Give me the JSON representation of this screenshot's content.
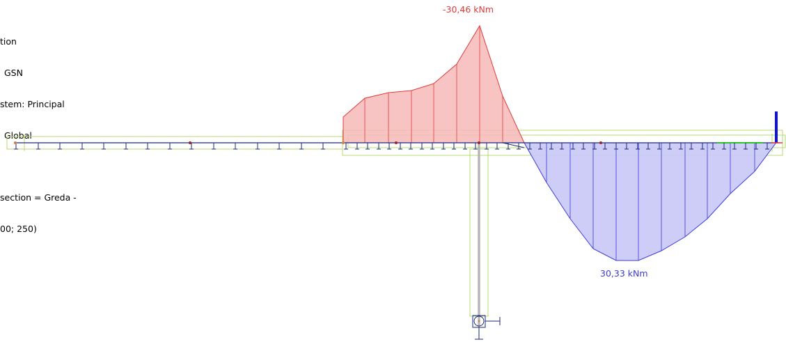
{
  "info": {
    "lines": [
      "tion",
      "GSN",
      "stem: Principal",
      "Global",
      "",
      "section = Greda -",
      "00; 250)"
    ]
  },
  "labels": {
    "max_negative": "-30,46 kNm",
    "max_positive": "30,33 kNm"
  },
  "diagram_data": {
    "unit": "kNm",
    "negative_moment_peak": -30.46,
    "positive_moment_peak": 30.33
  },
  "colors": {
    "negative_fill": "#f7b8b8",
    "negative_stroke": "#e23a3a",
    "negative_label": "#e23a3a",
    "positive_fill": "#c8c8f6",
    "positive_stroke": "#3a3ae0",
    "positive_label": "#3a3ad0",
    "element_outline": "#b8d870",
    "beam_line": "#1a2a7a",
    "column_line": "#9a9a9a"
  }
}
